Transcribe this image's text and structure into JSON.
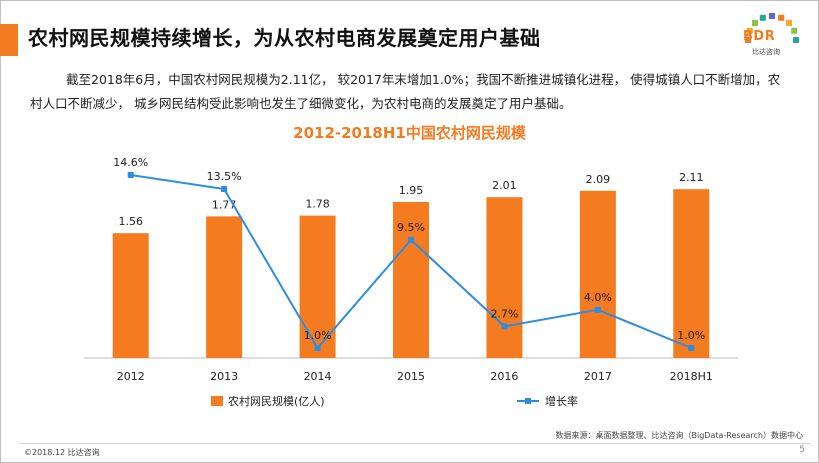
{
  "header": {
    "title": "农村网民规模持续增长，为从农村电商发展奠定用户基础"
  },
  "logo": {
    "text": "BDR",
    "subtext": "比达咨询",
    "colors": [
      "#f47b20",
      "#f9a825",
      "#8bc34a",
      "#26a69a",
      "#5c6bc0"
    ]
  },
  "description": "截至2018年6月，中国农村网民规模为2.11亿， 较2017年末增加1.0%；我国不断推进城镇化进程， 使得城镇人口不断增加，农村人口不断减少， 城乡网民结构受此影响也发生了细微变化，为农村电商的发展奠定了用户基础。",
  "chart_data": {
    "type": "bar",
    "title": "2012-2018H1中国农村网民规模",
    "categories": [
      "2012",
      "2013",
      "2014",
      "2015",
      "2016",
      "2017",
      "2018H1"
    ],
    "series": [
      {
        "name": "农村网民规模(亿人)",
        "type": "bar",
        "color": "#f47b20",
        "values": [
          1.56,
          1.77,
          1.78,
          1.95,
          2.01,
          2.09,
          2.11
        ],
        "labels": [
          "1.56",
          "1.77",
          "1.78",
          "1.95",
          "2.01",
          "2.09",
          "2.11"
        ]
      },
      {
        "name": "增长率",
        "type": "line",
        "color": "#2e8de0",
        "values": [
          14.6,
          13.5,
          1.0,
          9.5,
          2.7,
          4.0,
          1.0
        ],
        "labels": [
          "14.6%",
          "13.5%",
          "1.0%",
          "9.5%",
          "2.7%",
          "4.0%",
          "1.0%"
        ]
      }
    ],
    "bar_ylim": [
      0,
      2.5
    ],
    "line_ylim": [
      -0.5,
      18
    ],
    "grid": false,
    "legend_position": "bottom"
  },
  "footer": {
    "source": "数据来源：桌面数据整理、比达咨询（BigData-Research）数据中心",
    "copyright": "©2018.12 比达咨询",
    "page": "5"
  }
}
